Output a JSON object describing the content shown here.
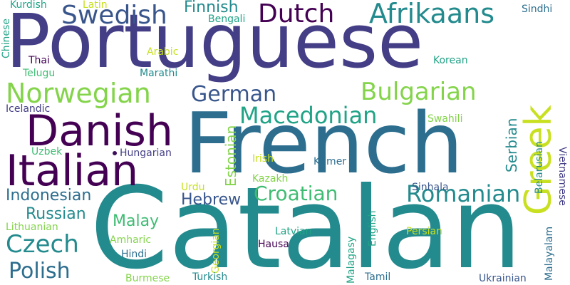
{
  "colors": {
    "purple": "#440154",
    "indigo": "#433e85",
    "blue": "#39568c",
    "steel": "#2d6e8e",
    "teal": "#238a8d",
    "seagreen": "#20a386",
    "green": "#3fbc73",
    "lime": "#84d44b",
    "yellow": "#c8e020"
  },
  "words": {
    "portuguese": "Portuguese",
    "catalan": "Catalan",
    "french": "French",
    "danish": "Danish",
    "italian": "Italian",
    "greek": "Greek",
    "norwegian": "Norwegian",
    "swedish": "Swedish",
    "dutch": "Dutch",
    "afrikaans": "Afrikaans",
    "german": "German",
    "bulgarian": "Bulgarian",
    "macedonian": "Macedonian",
    "romanian": "Romanian",
    "croatian": "Croatian",
    "czech": "Czech",
    "polish": "Polish",
    "indonesian": "Indonesian",
    "russian": "Russian",
    "malay": "Malay",
    "hebrew": "Hebrew",
    "finnish": "Finnish",
    "estonian": "Estonian",
    "serbian": "Serbian",
    "kurdish": "Kurdish",
    "latin": "Latin",
    "chinese": "Chinese",
    "bengali": "Bengali",
    "sindhi": "Sindhi",
    "thai": "Thai",
    "arabic": "Arabic",
    "telugu": "Telugu",
    "marathi": "Marathi",
    "korean": "Korean",
    "icelandic": "Icelandic",
    "swahili": "Swahili",
    "uzbek": "Uzbek",
    "hungarian": "Hungarian",
    "irish": "Irish",
    "khmer": "Khmer",
    "belarusian": "Belarusian",
    "vietnamese": "Vietnamese",
    "kazakh": "Kazakh",
    "urdu": "Urdu",
    "sinhala": "Sinhala",
    "lithuanian": "Lithuanian",
    "amharic": "Amharic",
    "latvian": "Latvian",
    "english": "English",
    "persian": "Persian",
    "malayalam": "Malayalam",
    "hindi": "Hindi",
    "hausa": "Hausa",
    "georgian": "Georgian",
    "malagasy": "Malagasy",
    "burmese": "Burmese",
    "turkish": "Turkish",
    "tamil": "Tamil",
    "ukrainian": "Ukrainian"
  }
}
